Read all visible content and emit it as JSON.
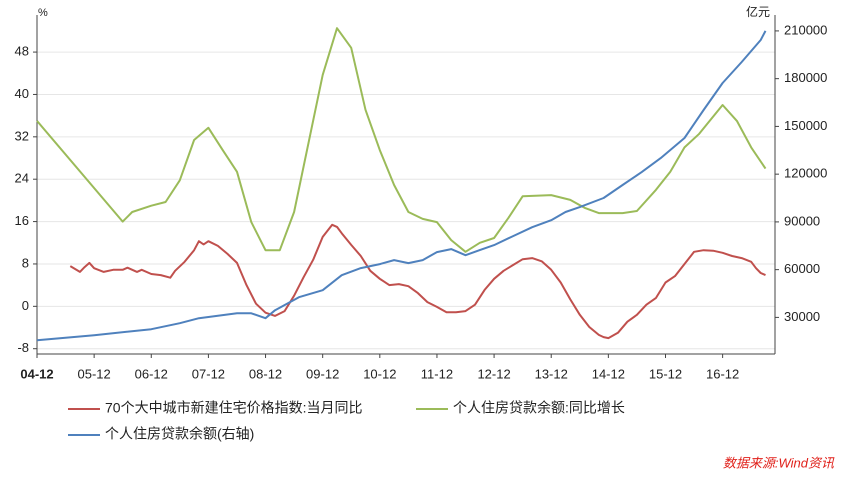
{
  "chart_data": {
    "type": "line",
    "y_unit": "%",
    "y2_unit": "亿元",
    "source": "数据来源:Wind资讯",
    "xlim": [
      0,
      155
    ],
    "xticks": [
      {
        "value": 0,
        "label": "04-12"
      },
      {
        "value": 12,
        "label": "05-12"
      },
      {
        "value": 24,
        "label": "06-12"
      },
      {
        "value": 36,
        "label": "07-12"
      },
      {
        "value": 48,
        "label": "08-12"
      },
      {
        "value": 60,
        "label": "09-12"
      },
      {
        "value": 72,
        "label": "10-12"
      },
      {
        "value": 84,
        "label": "11-12"
      },
      {
        "value": 96,
        "label": "12-12"
      },
      {
        "value": 108,
        "label": "13-12"
      },
      {
        "value": 120,
        "label": "14-12"
      },
      {
        "value": 132,
        "label": "15-12"
      },
      {
        "value": 144,
        "label": "16-12"
      }
    ],
    "ylim": [
      -9,
      55
    ],
    "yticks": [
      -8,
      0,
      8,
      16,
      24,
      32,
      40,
      48
    ],
    "y2lim": [
      7000,
      220000
    ],
    "y2ticks": [
      30000,
      60000,
      90000,
      120000,
      150000,
      180000,
      210000
    ],
    "grid": true,
    "series": [
      {
        "name": "70个大中城市新建住宅价格指数:当月同比",
        "color": "#c0504d",
        "x": [
          7,
          9,
          10,
          11,
          12,
          14,
          16,
          18,
          19,
          21,
          22,
          24,
          26,
          28,
          29,
          31,
          33,
          34,
          35,
          36,
          38,
          40,
          42,
          44,
          46,
          48,
          50,
          52,
          54,
          56,
          58,
          60,
          62,
          63,
          64,
          66,
          68,
          70,
          72,
          74,
          76,
          78,
          80,
          82,
          84,
          86,
          88,
          90,
          92,
          94,
          96,
          98,
          100,
          102,
          104,
          106,
          108,
          110,
          112,
          114,
          116,
          118,
          119,
          120,
          122,
          124,
          126,
          128,
          130,
          132,
          134,
          136,
          138,
          140,
          142,
          144,
          146,
          148,
          150,
          151,
          152,
          153
        ],
        "values": [
          7.6,
          6.5,
          7.4,
          8.2,
          7.2,
          6.5,
          6.9,
          6.9,
          7.3,
          6.5,
          6.9,
          6.1,
          5.9,
          5.4,
          6.7,
          8.4,
          10.6,
          12.3,
          11.7,
          12.3,
          11.4,
          9.9,
          8.2,
          4.0,
          0.5,
          -1.2,
          -1.8,
          -0.9,
          2.0,
          5.5,
          8.8,
          13.1,
          15.4,
          15.0,
          13.8,
          11.6,
          9.5,
          6.7,
          5.2,
          4.0,
          4.2,
          3.8,
          2.5,
          0.8,
          -0.1,
          -1.1,
          -1.1,
          -0.9,
          0.3,
          3.1,
          5.2,
          6.7,
          7.8,
          8.9,
          9.1,
          8.5,
          6.9,
          4.5,
          1.3,
          -1.6,
          -3.9,
          -5.4,
          -5.8,
          -6.0,
          -5.0,
          -2.9,
          -1.6,
          0.3,
          1.6,
          4.5,
          5.7,
          8.0,
          10.3,
          10.6,
          10.5,
          10.1,
          9.5,
          9.1,
          8.4,
          7.2,
          6.3,
          5.9
        ]
      },
      {
        "name": "个人住房贷款余额:同比增长",
        "color": "#9bbb59",
        "x": [
          0,
          18,
          20,
          24,
          27,
          30,
          33,
          36,
          39,
          42,
          45,
          48,
          51,
          54,
          60,
          63,
          66,
          69,
          72,
          75,
          78,
          81,
          84,
          87,
          90,
          93,
          96,
          99,
          102,
          108,
          112,
          115,
          118,
          123,
          126,
          130,
          133,
          136,
          139,
          144,
          147,
          150,
          153
        ],
        "values": [
          35,
          16,
          17.8,
          19,
          19.7,
          23.8,
          31.4,
          33.7,
          29.5,
          25.4,
          15.9,
          10.6,
          10.6,
          17.8,
          43.7,
          52.5,
          48.8,
          37.1,
          29.5,
          22.9,
          17.8,
          16.5,
          15.9,
          12.5,
          10.3,
          12,
          12.9,
          16.7,
          20.8,
          21.0,
          20.1,
          18.6,
          17.6,
          17.6,
          18.0,
          22,
          25.4,
          30,
          32.5,
          38,
          35,
          30,
          26
        ]
      },
      {
        "name": "个人住房贷款余额(右轴)",
        "color": "#4f81bd",
        "axis": "y2",
        "x": [
          0,
          12,
          24,
          30,
          34,
          42,
          45,
          48,
          50,
          55,
          60,
          64,
          68,
          72,
          75,
          78,
          81,
          84,
          87,
          90,
          93,
          96,
          100,
          104,
          108,
          111,
          114,
          119,
          123,
          127,
          131,
          136,
          140,
          144,
          148,
          152,
          153
        ],
        "values": [
          15700,
          18800,
          22600,
          26350,
          29500,
          32600,
          32600,
          29500,
          34500,
          42700,
          47100,
          56500,
          61000,
          63500,
          66000,
          64100,
          66000,
          71000,
          72900,
          69100,
          72300,
          75400,
          81100,
          86700,
          91100,
          96200,
          99300,
          105000,
          113200,
          121300,
          130100,
          142700,
          160300,
          177300,
          190500,
          204300,
          210000
        ]
      }
    ]
  }
}
